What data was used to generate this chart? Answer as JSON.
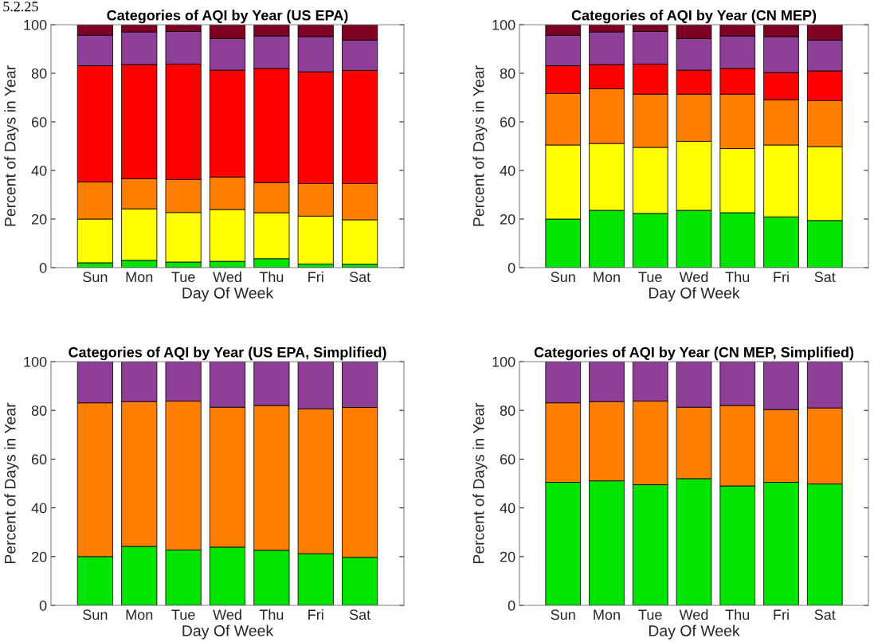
{
  "chart_data": [
    {
      "type": "bar",
      "stacked": true,
      "title": "Categories of AQI by Year (US EPA)",
      "xlabel": "Day Of Week",
      "ylabel": "Percent of Days in Year",
      "annotations": [
        "5.2.25"
      ],
      "categories": [
        "Sun",
        "Mon",
        "Tue",
        "Wed",
        "Thu",
        "Fri",
        "Sat"
      ],
      "ylim": [
        0,
        100
      ],
      "yticks": [
        0,
        20,
        40,
        60,
        80,
        100
      ],
      "grid": false,
      "series": [
        {
          "color": "#00e400",
          "values": [
            2,
            3,
            2.3,
            2.6,
            3.7,
            1.5,
            1.4
          ]
        },
        {
          "color": "#ffff00",
          "values": [
            18,
            21.2,
            20.4,
            21.3,
            18.9,
            19.7,
            18.3
          ]
        },
        {
          "color": "#ff7e00",
          "values": [
            15.3,
            12.4,
            13.6,
            13.4,
            12.4,
            13.4,
            14.9
          ]
        },
        {
          "color": "#ff0000",
          "values": [
            47.8,
            47,
            47.5,
            44,
            47,
            46,
            46.6
          ]
        },
        {
          "color": "#8f3f97",
          "values": [
            12.6,
            13.4,
            13.4,
            13,
            13.4,
            14.5,
            12.4
          ]
        },
        {
          "color": "#7e0023",
          "values": [
            4.3,
            3,
            2.8,
            5.7,
            4.6,
            4.9,
            6.4
          ]
        }
      ]
    },
    {
      "type": "bar",
      "stacked": true,
      "title": "Categories of AQI by Year (CN MEP)",
      "xlabel": "Day Of Week",
      "ylabel": "Percent of Days in Year",
      "categories": [
        "Sun",
        "Mon",
        "Tue",
        "Wed",
        "Thu",
        "Fri",
        "Sat"
      ],
      "ylim": [
        0,
        100
      ],
      "yticks": [
        0,
        20,
        40,
        60,
        80,
        100
      ],
      "grid": false,
      "series": [
        {
          "color": "#00e400",
          "values": [
            20,
            23.6,
            22.3,
            23.6,
            22.6,
            20.9,
            19.4
          ]
        },
        {
          "color": "#ffff00",
          "values": [
            30.5,
            27.5,
            27.2,
            28.4,
            26.4,
            29.6,
            30.4
          ]
        },
        {
          "color": "#ff7e00",
          "values": [
            21.2,
            22.5,
            21.9,
            19.4,
            22.4,
            18.6,
            19
          ]
        },
        {
          "color": "#ff0000",
          "values": [
            11.4,
            10,
            12.4,
            9.9,
            10.6,
            11.2,
            12.2
          ]
        },
        {
          "color": "#8f3f97",
          "values": [
            12.6,
            13.4,
            13.4,
            13,
            13.4,
            14.8,
            12.6
          ]
        },
        {
          "color": "#7e0023",
          "values": [
            4.3,
            3,
            2.8,
            5.7,
            4.6,
            4.9,
            6.4
          ]
        }
      ]
    },
    {
      "type": "bar",
      "stacked": true,
      "title": "Categories of AQI by Year (US EPA, Simplified)",
      "xlabel": "Day Of Week",
      "ylabel": "Percent of Days in Year",
      "categories": [
        "Sun",
        "Mon",
        "Tue",
        "Wed",
        "Thu",
        "Fri",
        "Sat"
      ],
      "ylim": [
        0,
        100
      ],
      "yticks": [
        0,
        20,
        40,
        60,
        80,
        100
      ],
      "grid": false,
      "series": [
        {
          "color": "#00e400",
          "values": [
            20,
            24.2,
            22.7,
            23.9,
            22.6,
            21.2,
            19.7
          ]
        },
        {
          "color": "#ff7e00",
          "values": [
            63.1,
            59.4,
            61.1,
            57.4,
            59.4,
            59.4,
            61.5
          ]
        },
        {
          "color": "#8f3f97",
          "values": [
            16.9,
            16.4,
            16.2,
            18.7,
            18,
            19.4,
            18.8
          ]
        }
      ]
    },
    {
      "type": "bar",
      "stacked": true,
      "title": "Categories of AQI by Year (CN MEP, Simplified)",
      "xlabel": "Day Of Week",
      "ylabel": "Percent of Days in Year",
      "categories": [
        "Sun",
        "Mon",
        "Tue",
        "Wed",
        "Thu",
        "Fri",
        "Sat"
      ],
      "ylim": [
        0,
        100
      ],
      "yticks": [
        0,
        20,
        40,
        60,
        80,
        100
      ],
      "grid": false,
      "series": [
        {
          "color": "#00e400",
          "values": [
            50.5,
            51.1,
            49.5,
            52,
            49,
            50.5,
            49.8
          ]
        },
        {
          "color": "#ff7e00",
          "values": [
            32.6,
            32.5,
            34.3,
            29.3,
            33,
            29.8,
            31.2
          ]
        },
        {
          "color": "#8f3f97",
          "values": [
            16.9,
            16.4,
            16.2,
            18.7,
            18,
            19.7,
            19
          ]
        }
      ]
    }
  ]
}
